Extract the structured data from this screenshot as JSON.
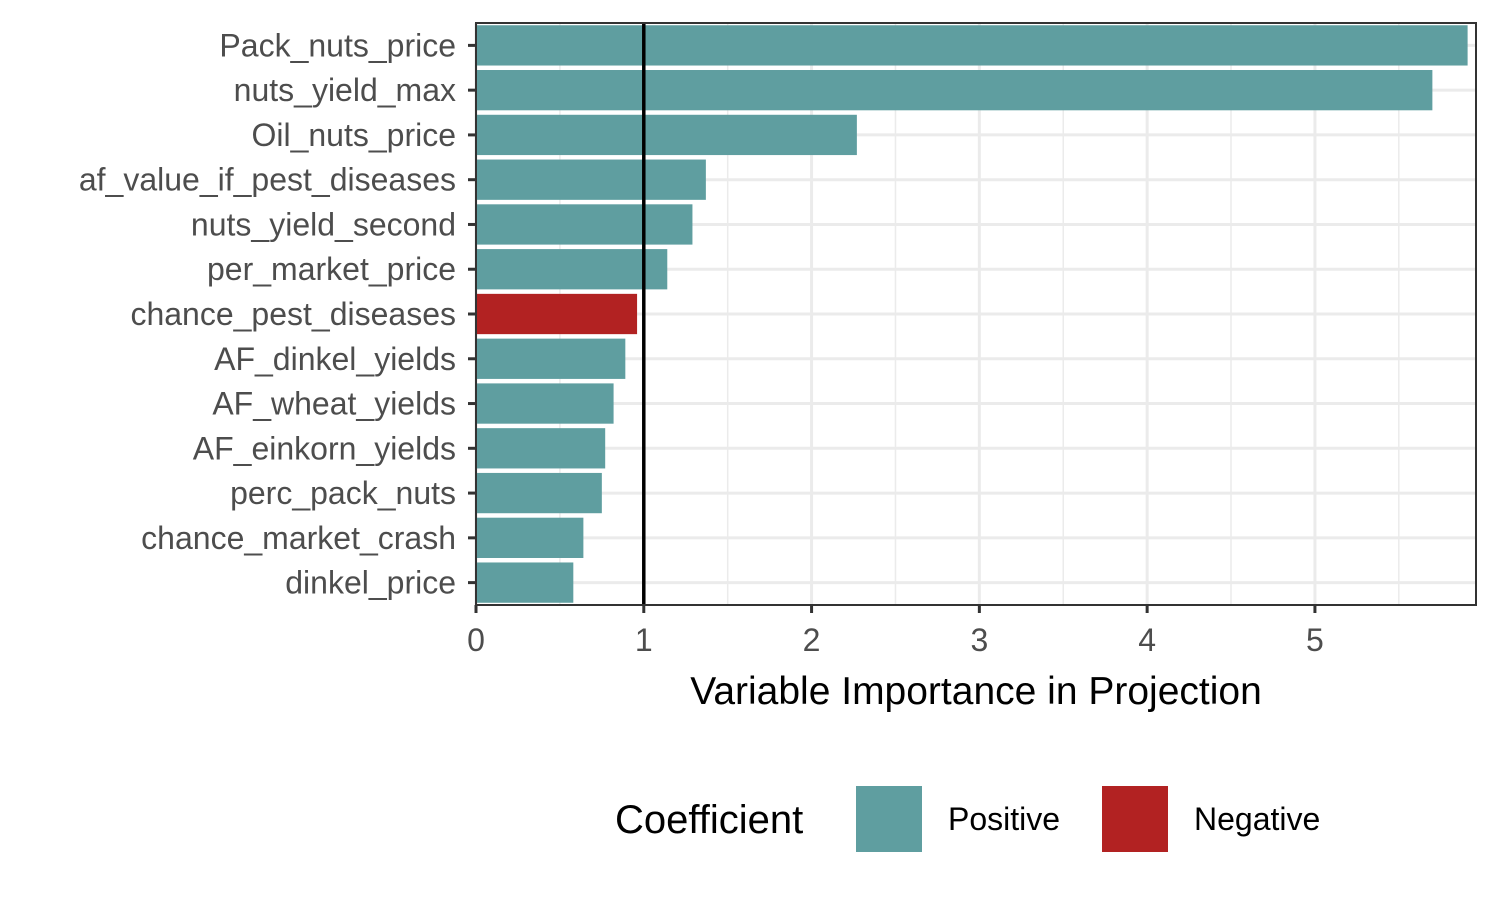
{
  "chart_data": {
    "type": "bar",
    "orientation": "horizontal",
    "categories": [
      "Pack_nuts_price",
      "nuts_yield_max",
      "Oil_nuts_price",
      "af_value_if_pest_diseases",
      "nuts_yield_second",
      "per_market_price",
      "chance_pest_diseases",
      "AF_dinkel_yields",
      "AF_wheat_yields",
      "AF_einkorn_yields",
      "perc_pack_nuts",
      "chance_market_crash",
      "dinkel_price"
    ],
    "values": [
      5.91,
      5.7,
      2.27,
      1.37,
      1.29,
      1.14,
      0.96,
      0.89,
      0.82,
      0.77,
      0.75,
      0.64,
      0.58
    ],
    "coefficient": [
      "Positive",
      "Positive",
      "Positive",
      "Positive",
      "Positive",
      "Positive",
      "Negative",
      "Positive",
      "Positive",
      "Positive",
      "Positive",
      "Positive",
      "Positive"
    ],
    "xlabel": "Variable Importance in Projection",
    "ylabel": "",
    "xlim": [
      0,
      5.96
    ],
    "xticks": [
      0,
      1,
      2,
      3,
      4,
      5
    ],
    "reference_line_x": 1,
    "grid": true,
    "legend": {
      "title": "Coefficient",
      "position": "bottom",
      "entries": [
        {
          "label": "Positive",
          "color": "#5f9ea0"
        },
        {
          "label": "Negative",
          "color": "#b22222"
        }
      ]
    },
    "colors": {
      "Positive": "#5f9ea0",
      "Negative": "#b22222"
    }
  }
}
